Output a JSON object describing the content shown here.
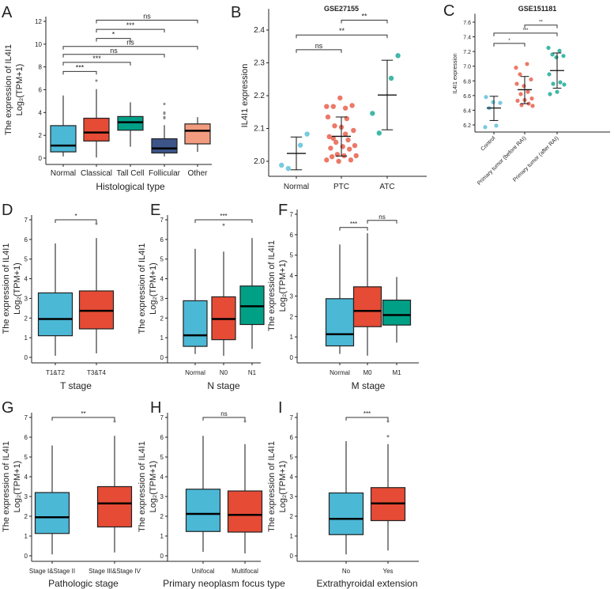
{
  "colors": {
    "blue": "#4BB8D6",
    "red": "#E64B35",
    "teal": "#00A087",
    "navy": "#3C5488",
    "salmon": "#F39B7F",
    "outlier": "#888888"
  },
  "chart_data": [
    {
      "panel": "A",
      "type": "box",
      "letter": "A",
      "xlabel": "Histological type",
      "ylabel": [
        "The expression of IL4I1",
        "Log₂(TPM+1)"
      ],
      "ylim": [
        0,
        12
      ],
      "yticks": [
        0,
        2,
        4,
        6,
        8,
        10,
        12
      ],
      "categories": [
        "Normal",
        "Classical",
        "Tall Cell",
        "Follicular",
        "Other"
      ],
      "box_colors": [
        "blue",
        "red",
        "teal",
        "navy",
        "salmon"
      ],
      "boxes": [
        {
          "min": 0.15,
          "q1": 0.55,
          "median": 1.1,
          "q3": 2.85,
          "max": 5.5,
          "outliers": []
        },
        {
          "min": 0.05,
          "q1": 1.5,
          "median": 2.25,
          "q3": 3.5,
          "max": 6.05,
          "outliers": [
            6.8
          ]
        },
        {
          "min": 1.0,
          "q1": 2.45,
          "median": 3.15,
          "q3": 3.65,
          "max": 4.9,
          "outliers": []
        },
        {
          "min": 0.15,
          "q1": 0.45,
          "median": 0.85,
          "q3": 1.7,
          "max": 2.9,
          "outliers": [
            3.5,
            3.6,
            3.9,
            4.0,
            4.75
          ]
        },
        {
          "min": 0.55,
          "q1": 1.25,
          "median": 2.4,
          "q3": 3.0,
          "max": 3.6,
          "outliers": []
        }
      ],
      "comparisons": [
        {
          "from": 0,
          "to": 1,
          "y": 7.6,
          "label": "***"
        },
        {
          "from": 0,
          "to": 2,
          "y": 8.4,
          "label": "***"
        },
        {
          "from": 0,
          "to": 3,
          "y": 9.1,
          "label": "ns"
        },
        {
          "from": 0,
          "to": 4,
          "y": 9.8,
          "label": "ns"
        },
        {
          "from": 1,
          "to": 2,
          "y": 10.5,
          "label": "*"
        },
        {
          "from": 1,
          "to": 3,
          "y": 11.3,
          "label": "***"
        },
        {
          "from": 1,
          "to": 4,
          "y": 12.1,
          "label": "ns"
        }
      ]
    },
    {
      "panel": "B",
      "type": "scatter",
      "letter": "B",
      "title": "GSE27155",
      "ylabel": [
        "IL4I1 expression"
      ],
      "ylim": [
        1.97,
        2.45
      ],
      "yticks": [
        2.0,
        2.1,
        2.2,
        2.3,
        2.4
      ],
      "tick_decimals": 1,
      "categories": [
        "Normal",
        "PTC",
        "ATC"
      ],
      "point_colors": [
        "blue",
        "red",
        "teal"
      ],
      "groups": [
        {
          "points": [
            1.988,
            2.049,
            1.978,
            2.083
          ],
          "mean": 2.024,
          "lower": 1.974,
          "upper": 2.074
        },
        {
          "points": [
            2.167,
            2.162,
            2.167,
            2.17,
            2.193,
            2.135,
            2.13,
            2.108,
            2.094,
            2.104,
            2.075,
            2.065,
            2.058,
            2.048,
            2.045,
            2.04,
            2.037,
            2.021,
            2.017,
            2.017,
            2.014,
            2.004,
            2.0,
            2.004,
            2.083,
            2.07
          ],
          "mean": 2.076,
          "lower": 2.016,
          "upper": 2.135
        },
        {
          "points": [
            2.146,
            2.253,
            2.086,
            2.322
          ],
          "mean": 2.202,
          "lower": 2.096,
          "upper": 2.308
        }
      ],
      "comparisons": [
        {
          "from": 0,
          "to": 1,
          "y": 2.34,
          "label": "ns"
        },
        {
          "from": 0,
          "to": 2,
          "y": 2.385,
          "label": "**"
        },
        {
          "from": 1,
          "to": 2,
          "y": 2.43,
          "label": "**"
        }
      ]
    },
    {
      "panel": "C",
      "type": "scatter",
      "letter": "C",
      "title": "GSE151181",
      "ylabel": [
        "IL4I1 expression"
      ],
      "ylim": [
        6.15,
        7.65
      ],
      "yticks": [
        6.2,
        6.4,
        6.6,
        6.8,
        7.0,
        7.2,
        7.4,
        7.6
      ],
      "tick_decimals": 1,
      "categories": [
        "Control",
        "Primary tumor (before RAI)",
        "Primary tumor (after RAI)"
      ],
      "point_colors": [
        "blue",
        "red",
        "teal"
      ],
      "groups": [
        {
          "points": [
            6.17,
            6.19,
            6.43,
            6.5,
            6.51,
            6.58
          ],
          "mean": 6.43,
          "lower": 6.26,
          "upper": 6.59
        },
        {
          "points": [
            6.98,
            7.03,
            6.89,
            6.82,
            6.73,
            6.76,
            6.65,
            6.62,
            6.56,
            6.54,
            6.53,
            6.49,
            6.47,
            6.46
          ],
          "mean": 6.68,
          "lower": 6.49,
          "upper": 6.86
        },
        {
          "points": [
            7.25,
            7.21,
            7.16,
            7.14,
            7.12,
            6.89,
            6.78,
            6.76,
            6.75,
            6.65,
            6.62
          ],
          "mean": 6.94,
          "lower": 6.7,
          "upper": 7.18
        }
      ],
      "comparisons": [
        {
          "from": 0,
          "to": 1,
          "y": 7.31,
          "label": "*"
        },
        {
          "from": 0,
          "to": 2,
          "y": 7.45,
          "label": "***"
        },
        {
          "from": 1,
          "to": 2,
          "y": 7.56,
          "label": "**"
        }
      ]
    },
    {
      "panel": "D",
      "type": "box",
      "letter": "D",
      "xlabel": "T stage",
      "ylabel": [
        "The expression of IL4I1",
        "Log₂(TPM+1)"
      ],
      "ylim": [
        0,
        7
      ],
      "yticks": [
        0,
        1,
        2,
        3,
        4,
        5,
        6,
        7
      ],
      "categories": [
        "T1&T2",
        "T3&T4"
      ],
      "box_colors": [
        "blue",
        "red"
      ],
      "boxes": [
        {
          "min": 0.08,
          "q1": 1.1,
          "median": 1.95,
          "q3": 3.28,
          "max": 5.8,
          "outliers": []
        },
        {
          "min": 0.2,
          "q1": 1.45,
          "median": 2.37,
          "q3": 3.38,
          "max": 6.07,
          "outliers": [
            6.8
          ]
        }
      ],
      "comparisons": [
        {
          "from": 0,
          "to": 1,
          "y": 7.0,
          "label": "*"
        }
      ]
    },
    {
      "panel": "E",
      "type": "box",
      "letter": "E",
      "xlabel": "N stage",
      "ylabel": [
        "The expression of IL4I1",
        "Log₂(TPM+1)"
      ],
      "ylim": [
        0,
        7
      ],
      "yticks": [
        0,
        1,
        2,
        3,
        4,
        5,
        6,
        7
      ],
      "categories": [
        "Normal",
        "N0",
        "N1"
      ],
      "box_colors": [
        "blue",
        "red",
        "teal"
      ],
      "boxes": [
        {
          "min": 0.17,
          "q1": 0.56,
          "median": 1.12,
          "q3": 2.88,
          "max": 5.52,
          "outliers": []
        },
        {
          "min": 0.08,
          "q1": 0.9,
          "median": 1.95,
          "q3": 3.08,
          "max": 5.38,
          "outliers": [
            6.75
          ]
        },
        {
          "min": 0.43,
          "q1": 1.67,
          "median": 2.6,
          "q3": 3.63,
          "max": 6.07,
          "outliers": []
        }
      ],
      "comparisons": [
        {
          "from": 0,
          "to": 2,
          "y": 7.0,
          "label": "***"
        }
      ]
    },
    {
      "panel": "F",
      "type": "box",
      "letter": "F",
      "xlabel": "M stage",
      "ylabel": [
        "The expression of IL4I1",
        "Log₂(TPM+1)"
      ],
      "ylim": [
        0,
        7
      ],
      "yticks": [
        0,
        1,
        2,
        3,
        4,
        5,
        6,
        7
      ],
      "categories": [
        "Normal",
        "M0",
        "M1"
      ],
      "box_colors": [
        "blue",
        "red",
        "teal"
      ],
      "boxes": [
        {
          "min": 0.17,
          "q1": 0.56,
          "median": 1.13,
          "q3": 2.87,
          "max": 5.52,
          "outliers": []
        },
        {
          "min": 0.08,
          "q1": 1.5,
          "median": 2.27,
          "q3": 3.45,
          "max": 6.07,
          "outliers": []
        },
        {
          "min": 0.72,
          "q1": 1.58,
          "median": 2.07,
          "q3": 2.8,
          "max": 3.93,
          "outliers": []
        }
      ],
      "comparisons": [
        {
          "from": 0,
          "to": 1,
          "y": 6.35,
          "label": "***"
        },
        {
          "from": 1,
          "to": 2,
          "y": 6.7,
          "label": "ns"
        }
      ]
    },
    {
      "panel": "G",
      "type": "box",
      "letter": "G",
      "xlabel": "Pathologic stage",
      "ylabel": [
        "The expression of IL4I1",
        "Log₂(TPM+1)"
      ],
      "ylim": [
        0,
        7
      ],
      "yticks": [
        0,
        1,
        2,
        3,
        4,
        5,
        6,
        7
      ],
      "categories": [
        "Stage I&Stage II",
        "Stage III&Stage IV"
      ],
      "box_colors": [
        "blue",
        "red"
      ],
      "boxes": [
        {
          "min": 0.07,
          "q1": 1.13,
          "median": 1.95,
          "q3": 3.2,
          "max": 5.58,
          "outliers": []
        },
        {
          "min": 0.17,
          "q1": 1.46,
          "median": 2.65,
          "q3": 3.5,
          "max": 6.07,
          "outliers": [
            6.8
          ]
        }
      ],
      "comparisons": [
        {
          "from": 0,
          "to": 1,
          "y": 7.0,
          "label": "**"
        }
      ]
    },
    {
      "panel": "H",
      "type": "box",
      "letter": "H",
      "xlabel": "Primary neoplasm focus type",
      "ylabel": [
        "The expression of IL4I1",
        "Log₂(TPM+1)"
      ],
      "ylim": [
        0,
        7
      ],
      "yticks": [
        0,
        1,
        2,
        3,
        4,
        5,
        6,
        7
      ],
      "categories": [
        "Unifocal",
        "Multifocal"
      ],
      "box_colors": [
        "blue",
        "red"
      ],
      "boxes": [
        {
          "min": 0.2,
          "q1": 1.23,
          "median": 2.12,
          "q3": 3.37,
          "max": 6.07,
          "outliers": []
        },
        {
          "min": 0.12,
          "q1": 1.2,
          "median": 2.07,
          "q3": 3.28,
          "max": 5.65,
          "outliers": [
            6.8
          ]
        }
      ],
      "comparisons": [
        {
          "from": 0,
          "to": 1,
          "y": 7.0,
          "label": "ns"
        }
      ]
    },
    {
      "panel": "I",
      "type": "box",
      "letter": "I",
      "xlabel": "Extrathyroidal extension",
      "ylabel": [
        "The expression of IL4I1",
        "Log₂(TPM+1)"
      ],
      "ylim": [
        0,
        7
      ],
      "yticks": [
        0,
        1,
        2,
        3,
        4,
        5,
        6,
        7
      ],
      "categories": [
        "No",
        "Yes"
      ],
      "box_colors": [
        "blue",
        "red"
      ],
      "boxes": [
        {
          "min": 0.07,
          "q1": 1.07,
          "median": 1.87,
          "q3": 3.18,
          "max": 5.8,
          "outliers": []
        },
        {
          "min": 0.27,
          "q1": 1.78,
          "median": 2.65,
          "q3": 3.45,
          "max": 5.65,
          "outliers": [
            6.05,
            6.8
          ]
        }
      ],
      "comparisons": [
        {
          "from": 0,
          "to": 1,
          "y": 7.0,
          "label": "***"
        }
      ]
    }
  ]
}
